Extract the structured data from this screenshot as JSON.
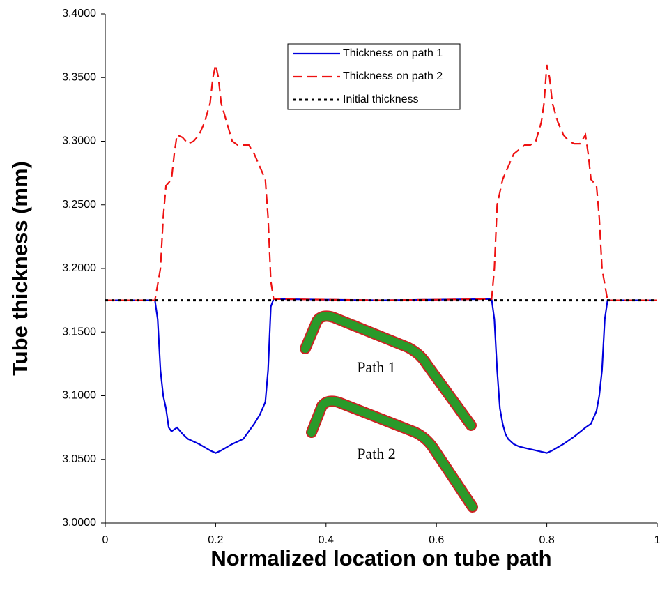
{
  "chart_data": {
    "type": "line",
    "x_label": "Normalized location on tube path",
    "y_label": "Tube thickness (mm)",
    "xlim": [
      0,
      1
    ],
    "xticks": [
      0,
      0.2,
      0.4,
      0.6,
      0.8,
      1
    ],
    "ylim": [
      3.0,
      3.4
    ],
    "yticks": [
      {
        "value": 3.0,
        "label": "3.0000"
      },
      {
        "value": 3.05,
        "label": "3.0500"
      },
      {
        "value": 3.1,
        "label": "3.1000"
      },
      {
        "value": 3.15,
        "label": "3.1500"
      },
      {
        "value": 3.2,
        "label": "3.2000"
      },
      {
        "value": 3.25,
        "label": "3.2500"
      },
      {
        "value": 3.3,
        "label": "3.3000"
      },
      {
        "value": 3.35,
        "label": "3.3500"
      },
      {
        "value": 3.4,
        "label": "3.4000"
      }
    ],
    "annotations": [
      "Path 1",
      "Path 2"
    ],
    "series": [
      {
        "name": "Thickness on path 1",
        "color": "#0000dd",
        "dash": "solid",
        "x": [
          0,
          0.09,
          0.095,
          0.1,
          0.105,
          0.11,
          0.115,
          0.12,
          0.13,
          0.14,
          0.15,
          0.17,
          0.19,
          0.2,
          0.21,
          0.23,
          0.25,
          0.27,
          0.28,
          0.29,
          0.295,
          0.3,
          0.305,
          0.5,
          0.7,
          0.705,
          0.71,
          0.715,
          0.72,
          0.725,
          0.73,
          0.74,
          0.75,
          0.77,
          0.79,
          0.8,
          0.81,
          0.83,
          0.85,
          0.87,
          0.88,
          0.89,
          0.895,
          0.9,
          0.905,
          0.91,
          1
        ],
        "values": [
          3.175,
          3.175,
          3.16,
          3.12,
          3.1,
          3.09,
          3.075,
          3.072,
          3.075,
          3.07,
          3.066,
          3.062,
          3.057,
          3.055,
          3.057,
          3.062,
          3.066,
          3.078,
          3.085,
          3.095,
          3.12,
          3.17,
          3.176,
          3.175,
          3.176,
          3.16,
          3.12,
          3.09,
          3.078,
          3.07,
          3.066,
          3.062,
          3.06,
          3.058,
          3.056,
          3.055,
          3.057,
          3.062,
          3.068,
          3.075,
          3.078,
          3.088,
          3.1,
          3.12,
          3.16,
          3.175,
          3.175
        ]
      },
      {
        "name": "Thickness on path 2",
        "color": "#ee1111",
        "dash": "dashed",
        "x": [
          0,
          0.09,
          0.1,
          0.105,
          0.11,
          0.12,
          0.125,
          0.13,
          0.14,
          0.15,
          0.16,
          0.17,
          0.18,
          0.19,
          0.195,
          0.2,
          0.205,
          0.21,
          0.22,
          0.23,
          0.24,
          0.26,
          0.27,
          0.28,
          0.29,
          0.295,
          0.3,
          0.305,
          0.5,
          0.7,
          0.705,
          0.71,
          0.72,
          0.73,
          0.74,
          0.76,
          0.77,
          0.78,
          0.79,
          0.795,
          0.8,
          0.805,
          0.81,
          0.82,
          0.83,
          0.84,
          0.85,
          0.86,
          0.87,
          0.875,
          0.88,
          0.89,
          0.895,
          0.9,
          0.91,
          1
        ],
        "values": [
          3.175,
          3.175,
          3.2,
          3.24,
          3.265,
          3.27,
          3.29,
          3.305,
          3.303,
          3.298,
          3.3,
          3.305,
          3.315,
          3.33,
          3.35,
          3.36,
          3.35,
          3.33,
          3.315,
          3.3,
          3.297,
          3.297,
          3.29,
          3.28,
          3.27,
          3.24,
          3.19,
          3.176,
          3.175,
          3.176,
          3.2,
          3.25,
          3.27,
          3.28,
          3.29,
          3.297,
          3.297,
          3.3,
          3.315,
          3.33,
          3.36,
          3.35,
          3.33,
          3.315,
          3.305,
          3.3,
          3.298,
          3.298,
          3.305,
          3.29,
          3.27,
          3.265,
          3.24,
          3.2,
          3.175,
          3.175
        ]
      },
      {
        "name": "Initial thickness",
        "color": "#000000",
        "dash": "dotted",
        "x": [
          0,
          1
        ],
        "values": [
          3.175,
          3.175
        ]
      }
    ]
  }
}
